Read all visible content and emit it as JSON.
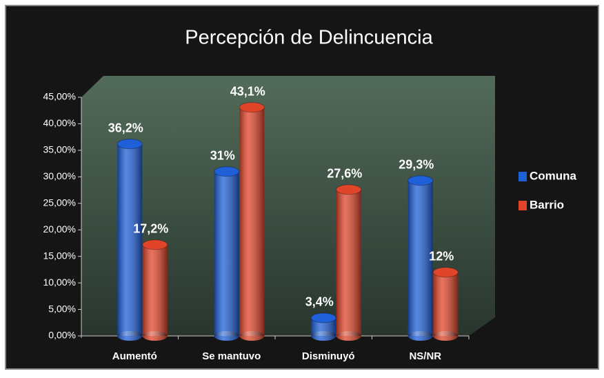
{
  "chart_data": {
    "type": "bar",
    "title": "Percepción de Delincuencia",
    "categories": [
      "Aumentó",
      "Se mantuvo",
      "Disminuyó",
      "NS/NR"
    ],
    "series": [
      {
        "name": "Comuna",
        "color": "#1f5fd8",
        "values": [
          36.2,
          31,
          3.4,
          29.3
        ],
        "value_labels": [
          "36,2%",
          "31%",
          "3,4%",
          "29,3%"
        ]
      },
      {
        "name": "Barrio",
        "color": "#e0452a",
        "values": [
          17.2,
          43.1,
          27.6,
          12
        ],
        "value_labels": [
          "17,2%",
          "43,1%",
          "27,6%",
          "12%"
        ]
      }
    ],
    "ylim": [
      0,
      45
    ],
    "yticks": [
      {
        "value": 0,
        "label": "0,00%"
      },
      {
        "value": 5,
        "label": "5,00%"
      },
      {
        "value": 10,
        "label": "10,00%"
      },
      {
        "value": 15,
        "label": "15,00%"
      },
      {
        "value": 20,
        "label": "20,00%"
      },
      {
        "value": 25,
        "label": "25,00%"
      },
      {
        "value": 30,
        "label": "30,00%"
      },
      {
        "value": 35,
        "label": "35,00%"
      },
      {
        "value": 40,
        "label": "40,00%"
      },
      {
        "value": 45,
        "label": "45,00%"
      }
    ],
    "legend": "right"
  }
}
